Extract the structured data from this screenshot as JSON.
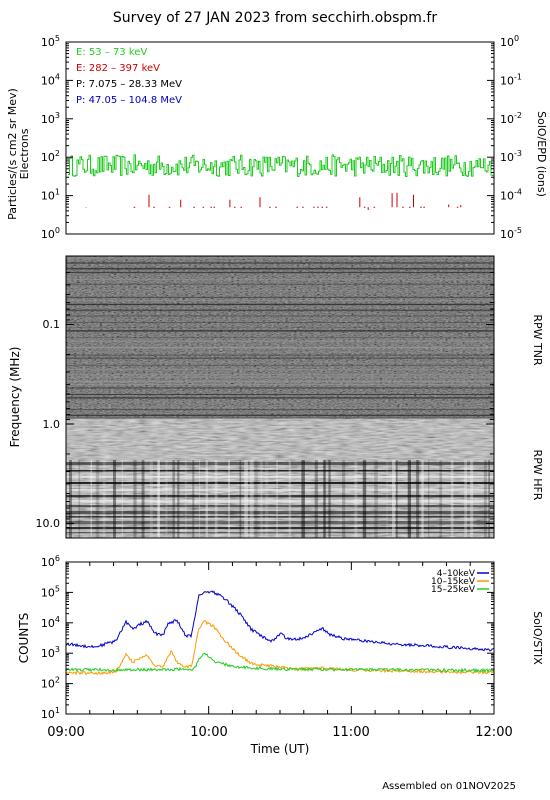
{
  "title": "Survey of 27 JAN 2023 from secchirh.obspm.fr",
  "footer": "Assembled on 01NOV2025",
  "chart_data": [
    {
      "panel": "epd",
      "type": "line",
      "ylabel_left": "Particles/(s cm2 sr Mev)",
      "ylabel_left2": "Electrons",
      "ylabel_right": "SolO/EPD (ions)",
      "yscale": "log",
      "ylim": [
        1,
        100000
      ],
      "yticks_left": [
        "10^0",
        "10^1",
        "10^2",
        "10^3",
        "10^4",
        "10^5"
      ],
      "yticks_right": [
        "10^-5",
        "10^-4",
        "10^-3",
        "10^-2",
        "10^-1",
        "10^0"
      ],
      "legend": [
        {
          "text": "E: 53 – 73 keV",
          "color": "#22cc22"
        },
        {
          "text": "E: 282 – 397 keV",
          "color": "#cc0000"
        },
        {
          "text": "P: 7.075 – 28.33 MeV",
          "color": "#000000"
        },
        {
          "text": "P: 47.05 – 104.8 MeV",
          "color": "#0000cc"
        }
      ],
      "series": [
        {
          "name": "E: 53 – 73 keV",
          "color": "#22cc22",
          "typical": 60,
          "range": [
            30,
            160
          ]
        },
        {
          "name": "E: 282 – 397 keV",
          "color": "#cc0000",
          "typical": 5,
          "range": [
            4,
            12
          ]
        }
      ],
      "grid": false
    },
    {
      "panel": "rpw",
      "type": "heatmap",
      "ylabel": "Frequency (MHz)",
      "yscale": "log",
      "yticks": [
        "0.1",
        "1.0",
        "10.0"
      ],
      "labels_right": [
        "RPW TNR",
        "RPW HFR"
      ],
      "colormap": "grayscale"
    },
    {
      "panel": "stix",
      "type": "line",
      "ylabel": "COUNTS",
      "label_right": "SolO/STIX",
      "xlabel": "Time (UT)",
      "yscale": "log",
      "ylim": [
        10,
        1000000
      ],
      "yticks": [
        "10^1",
        "10^2",
        "10^3",
        "10^4",
        "10^5",
        "10^6"
      ],
      "xticks": [
        "09:00",
        "10:00",
        "11:00",
        "12:00"
      ],
      "xlim_hours": [
        9,
        12
      ],
      "legend_position": "top-right",
      "series": [
        {
          "name": "4–10keV",
          "color": "#0000cc",
          "x": [
            9.0,
            9.2,
            9.35,
            9.42,
            9.47,
            9.52,
            9.57,
            9.62,
            9.68,
            9.72,
            9.78,
            9.84,
            9.88,
            9.93,
            9.97,
            10.02,
            10.1,
            10.2,
            10.3,
            10.4,
            10.45,
            10.5,
            10.55,
            10.65,
            10.75,
            10.8,
            10.85,
            10.95,
            11.1,
            11.3,
            11.5,
            11.75,
            12.0
          ],
          "y": [
            2000,
            1600,
            2500,
            11000,
            6000,
            9000,
            11000,
            4500,
            4000,
            10000,
            12000,
            3500,
            3800,
            80000,
            100000,
            110000,
            70000,
            25000,
            6000,
            3000,
            2500,
            4500,
            3000,
            3000,
            5000,
            6500,
            4000,
            3000,
            2500,
            2000,
            1800,
            1500,
            1300
          ]
        },
        {
          "name": "10–15keV",
          "color": "#ff9900",
          "x": [
            9.0,
            9.2,
            9.35,
            9.42,
            9.47,
            9.52,
            9.57,
            9.62,
            9.68,
            9.74,
            9.78,
            9.84,
            9.88,
            9.93,
            9.97,
            10.03,
            10.1,
            10.2,
            10.3,
            10.5,
            10.6,
            10.8,
            11.0,
            11.5,
            12.0
          ],
          "y": [
            230,
            220,
            240,
            900,
            500,
            700,
            900,
            400,
            350,
            1200,
            500,
            350,
            400,
            6000,
            11000,
            8000,
            3000,
            1000,
            450,
            350,
            300,
            320,
            280,
            250,
            230
          ]
        },
        {
          "name": "15–25keV",
          "color": "#22cc22",
          "x": [
            9.0,
            9.3,
            9.6,
            9.9,
            9.93,
            9.97,
            10.0,
            10.05,
            10.2,
            10.5,
            11.0,
            11.5,
            12.0
          ],
          "y": [
            290,
            280,
            290,
            300,
            600,
            1100,
            800,
            500,
            350,
            300,
            290,
            280,
            270
          ]
        }
      ],
      "grid": false
    }
  ]
}
